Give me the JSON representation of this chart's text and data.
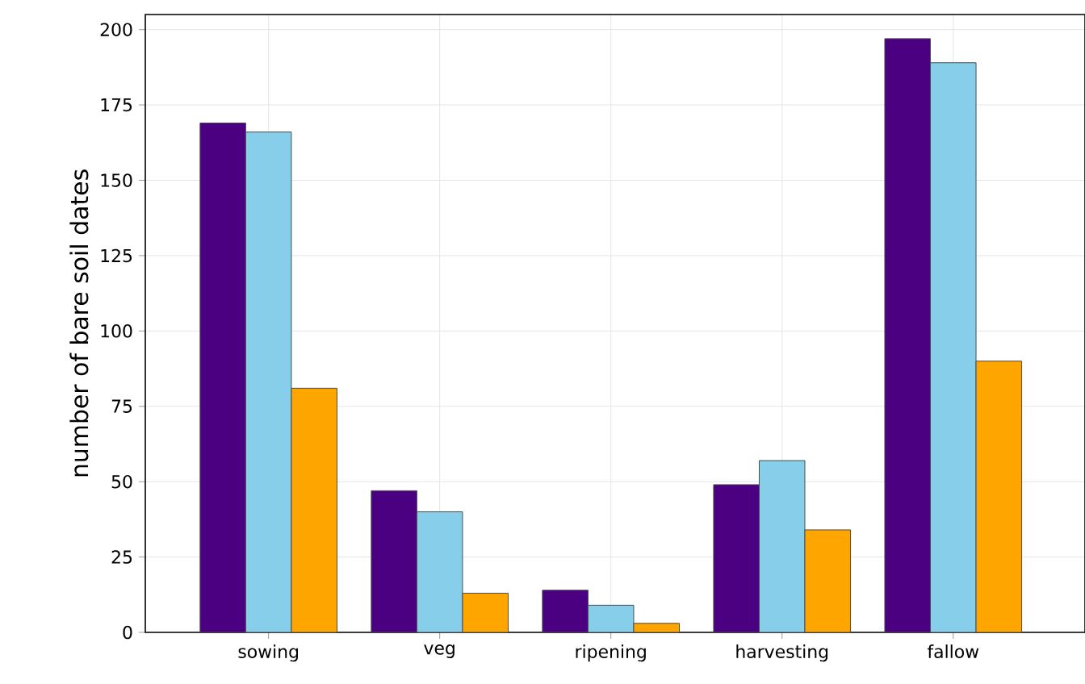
{
  "chart_data": {
    "type": "bar",
    "ylabel": "number of bare soil dates",
    "categories": [
      "sowing",
      "veg",
      "ripening",
      "harvesting",
      "fallow"
    ],
    "series": [
      {
        "color": "#4b0082",
        "values": [
          169,
          47,
          14,
          49,
          197
        ]
      },
      {
        "color": "#87ceeb",
        "values": [
          166,
          40,
          9,
          57,
          189
        ]
      },
      {
        "color": "#ffa500",
        "values": [
          81,
          13,
          3,
          34,
          90
        ]
      }
    ],
    "ylim": [
      0,
      205
    ],
    "yticks": [
      0,
      25,
      50,
      75,
      100,
      125,
      150,
      175,
      200
    ],
    "grid": true
  }
}
